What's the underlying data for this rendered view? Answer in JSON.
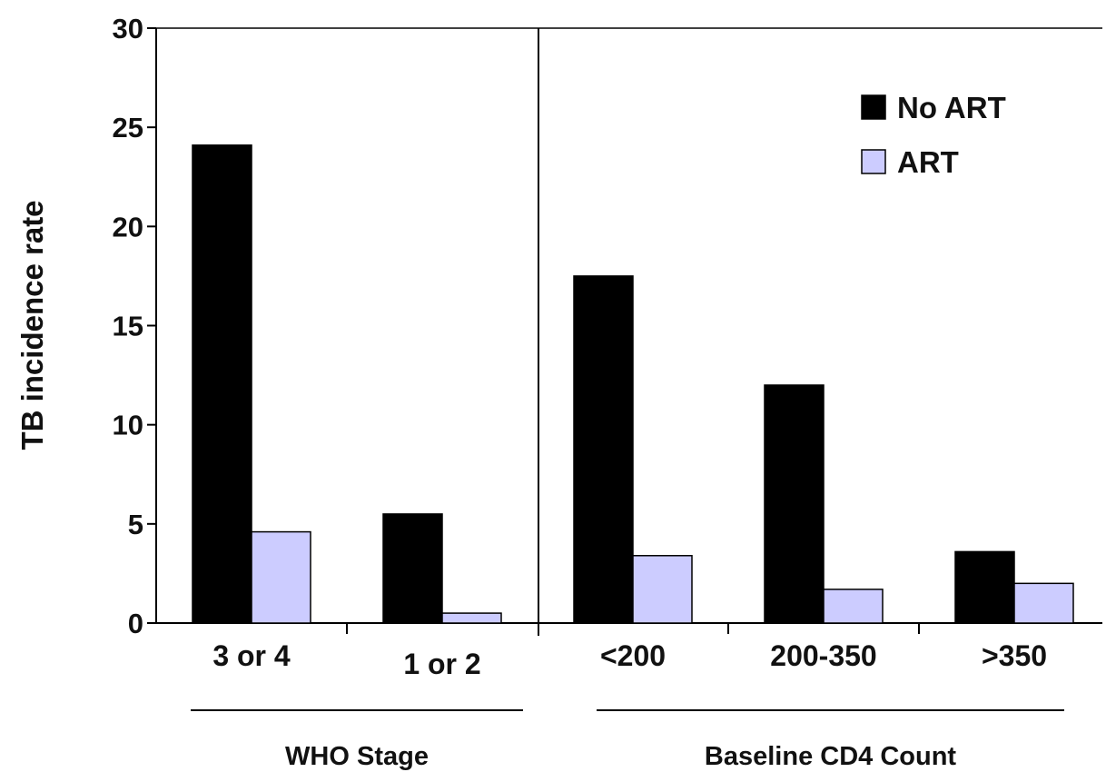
{
  "chart_data": {
    "type": "bar",
    "title": "",
    "xlabel": "",
    "ylabel": "TB incidence rate",
    "ylim": [
      0,
      30
    ],
    "yticks": [
      0,
      5,
      10,
      15,
      20,
      25,
      30
    ],
    "categories": [
      "3 or 4",
      "1 or 2",
      "<200",
      "200-350",
      ">350"
    ],
    "groups": [
      {
        "label": "WHO Stage",
        "categories": [
          "3 or 4",
          "1 or 2"
        ]
      },
      {
        "label": "Baseline CD4 Count",
        "categories": [
          "<200",
          "200-350",
          ">350"
        ]
      }
    ],
    "series": [
      {
        "name": "No ART",
        "color": "#000000",
        "values": [
          24.1,
          5.5,
          17.5,
          12.0,
          3.6
        ]
      },
      {
        "name": "ART",
        "color": "#ccccff",
        "values": [
          4.6,
          0.5,
          3.4,
          1.7,
          2.0
        ]
      }
    ],
    "legend_position": "top-right",
    "grid": false
  }
}
